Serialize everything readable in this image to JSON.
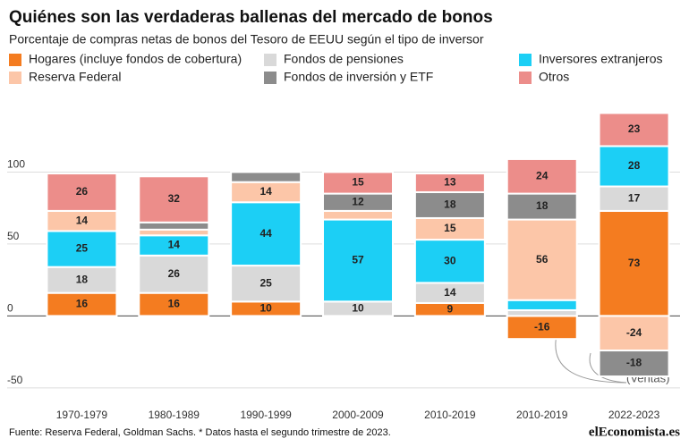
{
  "chart_data": {
    "type": "bar",
    "title": "Quiénes son las verdaderas ballenas del mercado de bonos",
    "subtitle": "Porcentaje de compras netas de bonos del Tesoro de EEUU según el tipo de inversor",
    "categories": [
      "1970-1979",
      "1980-1989",
      "1990-1999",
      "2000-2009",
      "2010-2019",
      "2010-2019",
      "2022-2023"
    ],
    "series": [
      {
        "name": "Hogares (incluye fondos de cobertura)",
        "color": "#f47c20",
        "values": [
          16,
          16,
          10,
          0,
          9,
          -16,
          73
        ]
      },
      {
        "name": "Fondos de pensiones",
        "color": "#d9d9d9",
        "values": [
          18,
          26,
          25,
          10,
          14,
          4,
          17
        ]
      },
      {
        "name": "Inversores extranjeros",
        "color": "#1ccff5",
        "values": [
          25,
          14,
          44,
          57,
          30,
          7,
          28
        ]
      },
      {
        "name": "Reserva Federal",
        "color": "#fcc6a8",
        "values": [
          14,
          4,
          14,
          6,
          15,
          56,
          -24
        ]
      },
      {
        "name": "Fondos de inversión y ETF",
        "color": "#8c8c8c",
        "values": [
          0,
          5,
          7,
          12,
          18,
          18,
          -18
        ]
      },
      {
        "name": "Otros",
        "color": "#ec8d8a",
        "values": [
          26,
          32,
          0,
          15,
          13,
          24,
          23
        ]
      }
    ],
    "ylim": [
      -60,
      145
    ],
    "yticks": [
      100,
      50,
      0,
      -50
    ],
    "annotation": "(Ventas)",
    "source": "Fuente: Reserva Federal, Goldman Sachs. * Datos hasta el segundo trimestre de 2023.",
    "logo": "elEconomista.es"
  }
}
